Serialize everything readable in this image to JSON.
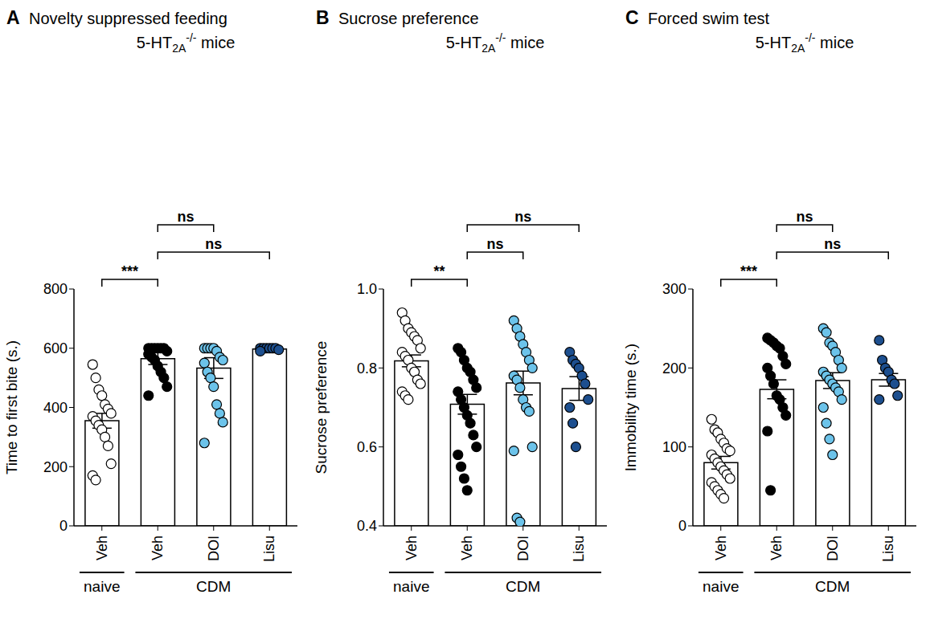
{
  "chart_data": [
    {
      "type": "bar",
      "panel": "A",
      "title": "Novelty suppressed feeding",
      "subtitle": [
        "5-HT",
        "2A",
        "-/-",
        " mice"
      ],
      "ylabel": "Time to first bite (s.)",
      "categories": [
        "Veh",
        "Veh",
        "DOI",
        "Lisu"
      ],
      "groups": [
        {
          "label": "naive",
          "from": 0,
          "to": 0
        },
        {
          "label": "CDM",
          "from": 1,
          "to": 3
        }
      ],
      "values": [
        355,
        565,
        533,
        597
      ],
      "errors": [
        25,
        20,
        35,
        3
      ],
      "points": [
        [
          545,
          500,
          460,
          440,
          410,
          395,
          380,
          370,
          355,
          340,
          325,
          300,
          270,
          210,
          170,
          155
        ],
        [
          600,
          600,
          600,
          600,
          600,
          600,
          590,
          580,
          570,
          560,
          540,
          520,
          500,
          470,
          440
        ],
        [
          600,
          600,
          600,
          600,
          590,
          570,
          560,
          550,
          520,
          500,
          470,
          410,
          380,
          350,
          280
        ],
        [
          600,
          600,
          600,
          600,
          600,
          600,
          595,
          590
        ]
      ],
      "colors": [
        "#ffffff",
        "#000000",
        "#6cc3ea",
        "#1d4f8f"
      ],
      "ylim": [
        0,
        800
      ],
      "yticks": [
        0,
        200,
        400,
        600,
        800
      ],
      "comparisons": [
        {
          "from": 0,
          "to": 1,
          "label": "***"
        },
        {
          "from": 1,
          "to": 3,
          "label": "ns"
        },
        {
          "from": 1,
          "to": 2,
          "label": "ns"
        }
      ]
    },
    {
      "type": "bar",
      "panel": "B",
      "title": "Sucrose preference",
      "subtitle": [
        "5-HT",
        "2A",
        "-/-",
        " mice"
      ],
      "ylabel": "Sucrose preference",
      "categories": [
        "Veh",
        "Veh",
        "DOI",
        "Lisu"
      ],
      "groups": [
        {
          "label": "naive",
          "from": 0,
          "to": 0
        },
        {
          "label": "CDM",
          "from": 1,
          "to": 3
        }
      ],
      "values": [
        0.818,
        0.708,
        0.762,
        0.748
      ],
      "errors": [
        0.015,
        0.025,
        0.03,
        0.03
      ],
      "points": [
        [
          0.94,
          0.92,
          0.9,
          0.89,
          0.88,
          0.87,
          0.85,
          0.84,
          0.83,
          0.82,
          0.8,
          0.79,
          0.77,
          0.76,
          0.74,
          0.73,
          0.72
        ],
        [
          0.85,
          0.84,
          0.82,
          0.8,
          0.79,
          0.77,
          0.75,
          0.74,
          0.72,
          0.7,
          0.68,
          0.66,
          0.63,
          0.6,
          0.58,
          0.55,
          0.52,
          0.49
        ],
        [
          0.92,
          0.9,
          0.88,
          0.86,
          0.84,
          0.82,
          0.8,
          0.78,
          0.77,
          0.75,
          0.72,
          0.7,
          0.69,
          0.6,
          0.59,
          0.42,
          0.41
        ],
        [
          0.84,
          0.82,
          0.81,
          0.8,
          0.78,
          0.76,
          0.72,
          0.7,
          0.66,
          0.6
        ]
      ],
      "colors": [
        "#ffffff",
        "#000000",
        "#6cc3ea",
        "#1d4f8f"
      ],
      "ylim": [
        0.4,
        1
      ],
      "yticks": [
        0.4,
        0.6,
        0.8,
        {
          "value": 1,
          "label": "1.0"
        }
      ],
      "comparisons": [
        {
          "from": 0,
          "to": 1,
          "label": "**"
        },
        {
          "from": 1,
          "to": 2,
          "label": "ns"
        },
        {
          "from": 1,
          "to": 3,
          "label": "ns"
        }
      ]
    },
    {
      "type": "bar",
      "panel": "C",
      "title": "Forced swim test",
      "subtitle": [
        "5-HT",
        "2A",
        "-/-",
        " mice"
      ],
      "ylabel": "Immobility time (s.)",
      "categories": [
        "Veh",
        "Veh",
        "DOI",
        "Lisu"
      ],
      "groups": [
        {
          "label": "naive",
          "from": 0,
          "to": 0
        },
        {
          "label": "CDM",
          "from": 1,
          "to": 3
        }
      ],
      "values": [
        80,
        173,
        184,
        185
      ],
      "errors": [
        8,
        12,
        10,
        8
      ],
      "points": [
        [
          135,
          122,
          118,
          110,
          105,
          98,
          95,
          90,
          85,
          80,
          75,
          70,
          65,
          60,
          55,
          50,
          45,
          40,
          35
        ],
        [
          238,
          235,
          232,
          228,
          225,
          215,
          205,
          200,
          190,
          180,
          165,
          160,
          150,
          140,
          120,
          45
        ],
        [
          250,
          245,
          232,
          228,
          220,
          210,
          200,
          195,
          190,
          185,
          180,
          175,
          170,
          160,
          150,
          130,
          110,
          90
        ],
        [
          235,
          210,
          200,
          195,
          185,
          180,
          165,
          160
        ]
      ],
      "colors": [
        "#ffffff",
        "#000000",
        "#6cc3ea",
        "#1d4f8f"
      ],
      "ylim": [
        0,
        300
      ],
      "yticks": [
        0,
        100,
        200,
        300
      ],
      "comparisons": [
        {
          "from": 0,
          "to": 1,
          "label": "***"
        },
        {
          "from": 1,
          "to": 3,
          "label": "ns"
        },
        {
          "from": 1,
          "to": 2,
          "label": "ns"
        }
      ]
    }
  ]
}
